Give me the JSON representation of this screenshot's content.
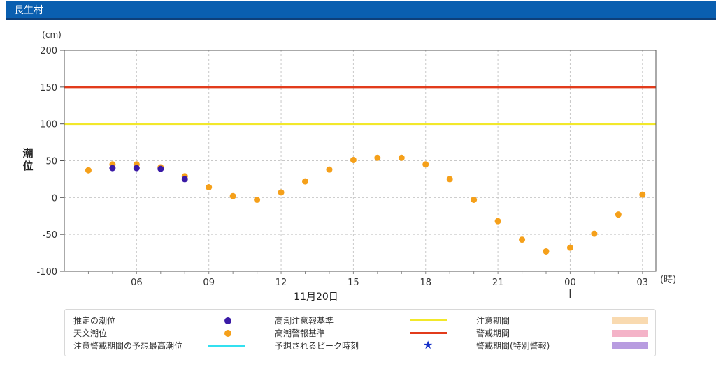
{
  "header": {
    "title": "長生村"
  },
  "chart_data": {
    "type": "scatter",
    "y_unit_label": "(cm)",
    "ylabel": "潮位",
    "x_unit_label": "(時)",
    "date_label": "11月20日",
    "ylim": [
      -100,
      200
    ],
    "y_ticks": [
      200,
      150,
      100,
      50,
      0,
      -50,
      -100
    ],
    "x_hours": [
      3,
      27
    ],
    "x_ticks": [
      {
        "hour": 6,
        "label": "06"
      },
      {
        "hour": 9,
        "label": "09"
      },
      {
        "hour": 12,
        "label": "12"
      },
      {
        "hour": 15,
        "label": "15"
      },
      {
        "hour": 18,
        "label": "18"
      },
      {
        "hour": 21,
        "label": "21"
      },
      {
        "hour": 24,
        "label": "00"
      },
      {
        "hour": 27,
        "label": "03"
      }
    ],
    "grid": true,
    "thresholds": [
      {
        "name": "高潮警報基準",
        "value": 150,
        "color": "#e23b1b"
      },
      {
        "name": "高潮注意報基準",
        "value": 100,
        "color": "#f2e82a"
      }
    ],
    "series": [
      {
        "name": "天文潮位",
        "color": "#f5a01a",
        "points": [
          {
            "hour": 4,
            "value": 37
          },
          {
            "hour": 5,
            "value": 45
          },
          {
            "hour": 6,
            "value": 45
          },
          {
            "hour": 7,
            "value": 41
          },
          {
            "hour": 8,
            "value": 29
          },
          {
            "hour": 9,
            "value": 14
          },
          {
            "hour": 10,
            "value": 2
          },
          {
            "hour": 11,
            "value": -3
          },
          {
            "hour": 12,
            "value": 7
          },
          {
            "hour": 13,
            "value": 22
          },
          {
            "hour": 14,
            "value": 38
          },
          {
            "hour": 15,
            "value": 51
          },
          {
            "hour": 16,
            "value": 54
          },
          {
            "hour": 17,
            "value": 54
          },
          {
            "hour": 18,
            "value": 45
          },
          {
            "hour": 19,
            "value": 25
          },
          {
            "hour": 20,
            "value": -3
          },
          {
            "hour": 21,
            "value": -32
          },
          {
            "hour": 22,
            "value": -57
          },
          {
            "hour": 23,
            "value": -73
          },
          {
            "hour": 24,
            "value": -68
          },
          {
            "hour": 25,
            "value": -49
          },
          {
            "hour": 26,
            "value": -23
          },
          {
            "hour": 27,
            "value": 4
          }
        ]
      },
      {
        "name": "推定の潮位",
        "color": "#3a1aa6",
        "points": [
          {
            "hour": 5,
            "value": 40
          },
          {
            "hour": 6,
            "value": 40
          },
          {
            "hour": 7,
            "value": 39
          },
          {
            "hour": 8,
            "value": 25
          }
        ]
      }
    ]
  },
  "legend": {
    "estimated": "推定の潮位",
    "astronomical": "天文潮位",
    "forecast_max": "注意警戒期間の予想最高潮位",
    "advisory_std": "高潮注意報基準",
    "warning_std": "高潮警報基準",
    "peak_time": "予想されるピーク時刻",
    "advisory_period": "注意期間",
    "warning_period": "警戒期間",
    "special_warning_period": "警戒期間(特別警報)",
    "colors": {
      "estimated": "#3a1aa6",
      "astronomical": "#f5a01a",
      "forecast_max": "#33e0f0",
      "advisory_std": "#f2e82a",
      "warning_std": "#e23b1b",
      "peak_time": "#1530c8",
      "advisory_period": "#f9dab0",
      "warning_period": "#f4b3c8",
      "special_warning_period": "#b89ce0"
    }
  }
}
